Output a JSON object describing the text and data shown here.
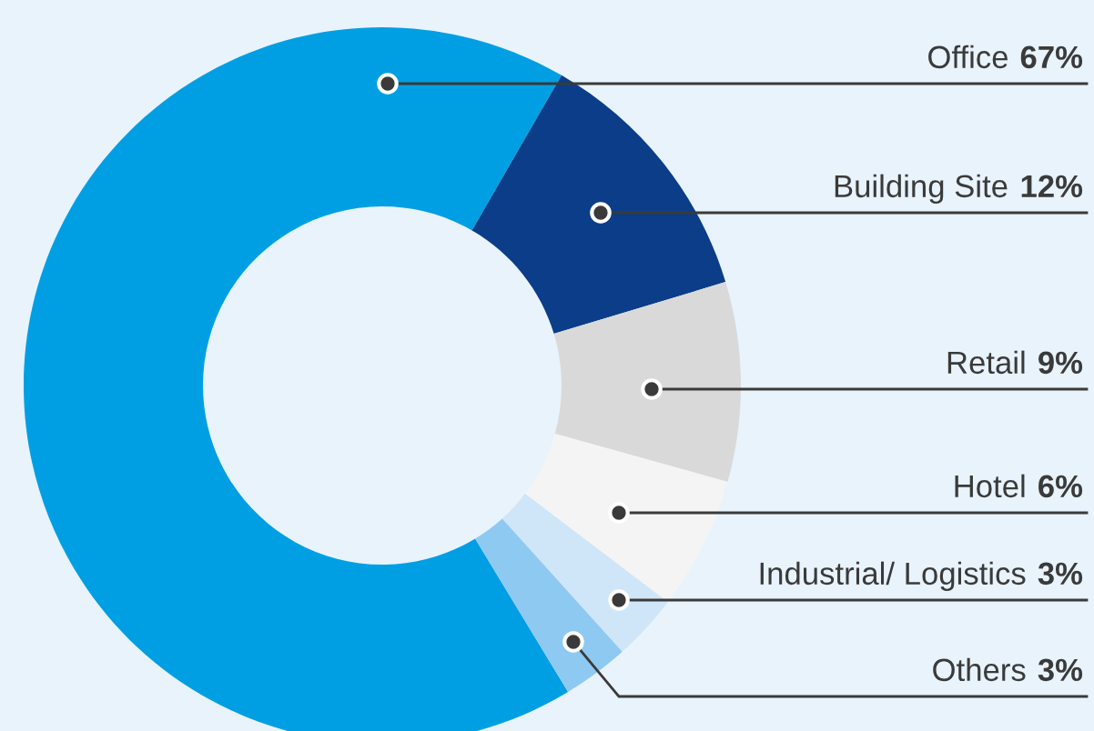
{
  "chart_data": {
    "type": "donut",
    "categories": [
      "Office",
      "Building Site",
      "Retail",
      "Hotel",
      "Industrial/ Logistics",
      "Others"
    ],
    "values": [
      67,
      12,
      9,
      6,
      3,
      3
    ],
    "value_labels": [
      "67%",
      "12%",
      "9%",
      "6%",
      "3%",
      "3%"
    ],
    "colors": [
      "#009fe3",
      "#0b3d89",
      "#d9d9d9",
      "#f4f4f4",
      "#cfe6f8",
      "#8ec9f1"
    ]
  }
}
